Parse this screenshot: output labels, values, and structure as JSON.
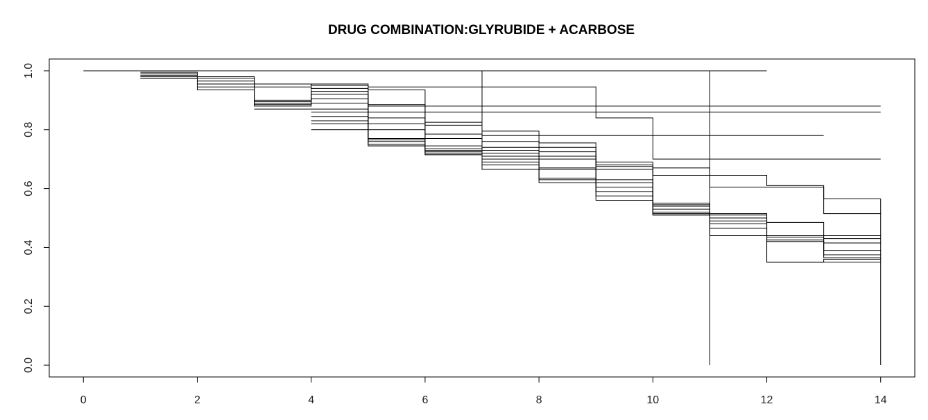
{
  "chart_data": {
    "type": "line",
    "title": "DRUG COMBINATION:GLYRUBIDE + ACARBOSE",
    "xlabel": "",
    "ylabel": "",
    "xlim": [
      -0.6,
      14.6
    ],
    "ylim": [
      -0.04,
      1.04
    ],
    "x_ticks": [
      0,
      2,
      4,
      6,
      8,
      10,
      12,
      14
    ],
    "x_tick_labels": [
      "0",
      "2",
      "4",
      "6",
      "8",
      "10",
      "12",
      "14"
    ],
    "y_ticks": [
      0.0,
      0.2,
      0.4,
      0.6,
      0.8,
      1.0
    ],
    "y_tick_labels": [
      "0.0",
      "0.2",
      "0.4",
      "0.6",
      "0.8",
      "1.0"
    ],
    "grid": false,
    "legend": "none",
    "line_color": "#000000",
    "step_curves": [
      {
        "x": [
          0,
          12
        ],
        "y": [
          1.0,
          1.0
        ]
      },
      {
        "x": [
          1,
          2,
          3,
          4,
          5,
          6,
          7,
          8,
          9,
          10,
          11,
          12,
          13,
          14
        ],
        "y": [
          0.995,
          0.98,
          0.955,
          0.95,
          0.945,
          0.945,
          0.945,
          0.945,
          0.84,
          0.7,
          0.7,
          0.7,
          0.7,
          0.7
        ]
      },
      {
        "x": [
          1,
          2,
          3,
          4,
          5,
          6,
          7,
          8,
          9,
          10,
          11,
          12,
          13,
          14
        ],
        "y": [
          0.99,
          0.975,
          0.945,
          0.94,
          0.935,
          0.88,
          0.88,
          0.88,
          0.88,
          0.88,
          0.88,
          0.88,
          0.88,
          0.88
        ]
      },
      {
        "x": [
          1,
          2,
          3,
          4,
          5,
          6,
          7,
          8,
          9,
          10,
          11,
          12,
          13,
          14
        ],
        "y": [
          0.985,
          0.965,
          0.9,
          0.955,
          0.885,
          0.86,
          0.86,
          0.86,
          0.86,
          0.86,
          0.86,
          0.86,
          0.86,
          0.86
        ]
      },
      {
        "x": [
          1,
          2,
          3,
          4,
          5,
          6,
          7,
          8,
          9,
          10,
          11,
          12,
          13
        ],
        "y": [
          0.98,
          0.955,
          0.895,
          0.93,
          0.88,
          0.825,
          0.795,
          0.78,
          0.78,
          0.78,
          0.78,
          0.78,
          0.78
        ]
      },
      {
        "x": [
          1,
          2,
          3,
          4,
          5,
          6,
          7,
          8,
          9,
          10,
          11,
          12,
          13,
          14
        ],
        "y": [
          0.975,
          0.945,
          0.89,
          0.92,
          0.86,
          0.815,
          0.78,
          0.755,
          0.69,
          0.67,
          0.645,
          0.61,
          0.565,
          0.565
        ]
      },
      {
        "x": [
          1,
          2,
          3,
          4,
          5,
          6,
          7,
          8,
          9,
          10,
          11,
          12,
          13,
          14
        ],
        "y": [
          0.975,
          0.935,
          0.885,
          0.905,
          0.84,
          0.785,
          0.76,
          0.74,
          0.68,
          0.645,
          0.605,
          0.605,
          0.515,
          0.515
        ]
      },
      {
        "x": [
          2,
          3,
          4,
          5,
          6,
          7,
          8,
          9,
          10,
          11,
          12,
          13,
          14
        ],
        "y": [
          0.98,
          0.88,
          0.89,
          0.82,
          0.77,
          0.74,
          0.725,
          0.675,
          0.55,
          0.515,
          0.485,
          0.44,
          0.44
        ]
      },
      {
        "x": [
          3,
          4,
          5,
          6,
          7,
          8,
          9,
          10,
          11,
          12,
          13,
          14
        ],
        "y": [
          0.87,
          0.87,
          0.8,
          0.745,
          0.73,
          0.71,
          0.665,
          0.545,
          0.51,
          0.44,
          0.43,
          0.43
        ]
      },
      {
        "x": [
          4,
          5,
          6,
          7,
          8,
          9,
          10,
          11,
          12,
          13,
          14
        ],
        "y": [
          0.86,
          0.77,
          0.735,
          0.72,
          0.7,
          0.63,
          0.54,
          0.5,
          0.435,
          0.415,
          0.415
        ]
      },
      {
        "x": [
          4,
          5,
          6,
          7,
          8,
          9,
          10,
          11,
          12,
          13,
          14
        ],
        "y": [
          0.845,
          0.765,
          0.73,
          0.71,
          0.67,
          0.62,
          0.53,
          0.49,
          0.425,
          0.39,
          0.39
        ]
      },
      {
        "x": [
          4,
          5,
          6,
          7,
          8,
          9,
          10,
          11,
          12,
          13,
          14
        ],
        "y": [
          0.83,
          0.76,
          0.725,
          0.7,
          0.665,
          0.605,
          0.52,
          0.48,
          0.42,
          0.375,
          0.375
        ]
      },
      {
        "x": [
          4,
          5,
          6,
          7,
          8,
          9,
          10,
          11,
          12,
          13,
          14
        ],
        "y": [
          0.82,
          0.75,
          0.72,
          0.69,
          0.635,
          0.59,
          0.515,
          0.465,
          0.42,
          0.365,
          0.365
        ]
      },
      {
        "x": [
          4,
          5,
          6,
          7,
          8,
          9,
          10,
          11,
          12,
          13,
          14
        ],
        "y": [
          0.8,
          0.745,
          0.715,
          0.68,
          0.63,
          0.575,
          0.51,
          0.44,
          0.35,
          0.36,
          0.36
        ]
      },
      {
        "x": [
          5,
          6,
          7,
          8,
          9,
          10,
          11,
          12,
          13,
          14
        ],
        "y": [
          0.745,
          0.715,
          0.665,
          0.62,
          0.56,
          0.51,
          0.44,
          0.35,
          0.35,
          0.35
        ]
      }
    ],
    "verticals": [
      {
        "x": 11,
        "y": [
          0.0,
          1.0
        ]
      },
      {
        "x": 14,
        "y": [
          0.0,
          0.565
        ]
      },
      {
        "x": 7,
        "y": [
          0.72,
          1.0
        ]
      }
    ]
  }
}
